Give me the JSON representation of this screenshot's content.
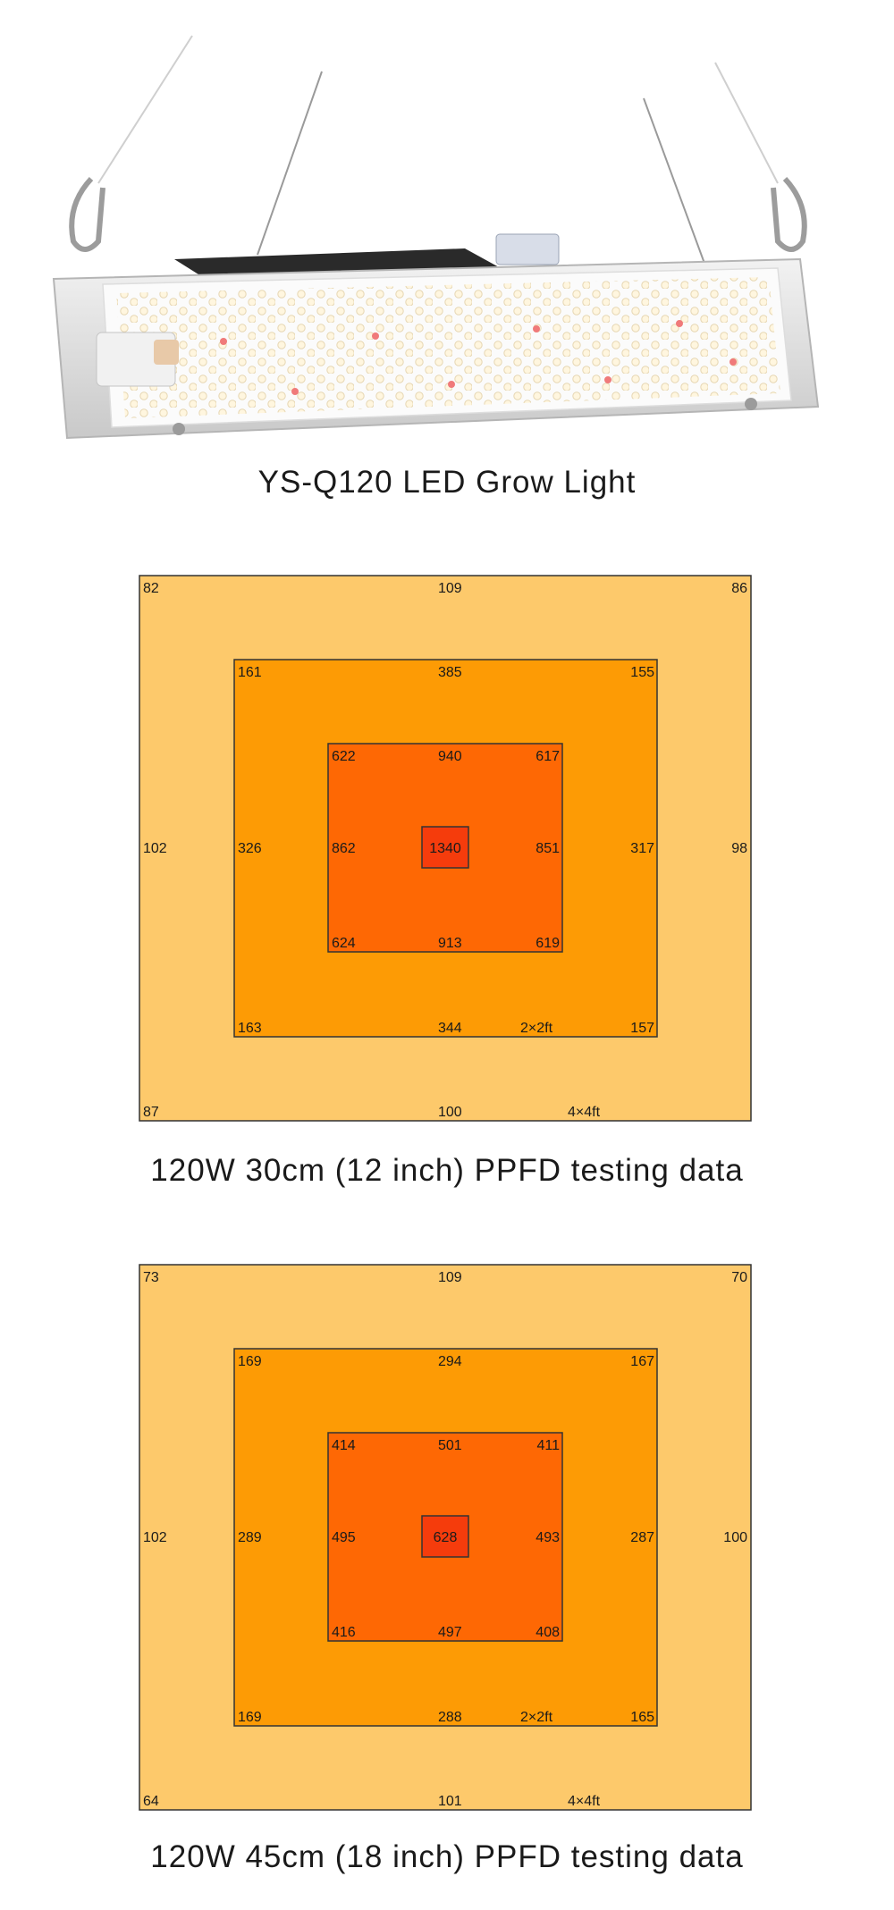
{
  "product": {
    "caption": "YS-Q120 LED Grow Light"
  },
  "diagrams": [
    {
      "caption": "120W 30cm (12 inch) PPFD testing data",
      "outer": {
        "tl": "82",
        "tc": "109",
        "tr": "86",
        "ml": "102",
        "mr": "98",
        "bl": "87",
        "bc": "100",
        "size": "4×4ft"
      },
      "middle": {
        "tl": "161",
        "tc": "385",
        "tr": "155",
        "ml": "326",
        "mr": "317",
        "bl": "163",
        "bc": "344",
        "br": "157",
        "size": "2×2ft"
      },
      "inner": {
        "tl": "622",
        "tc": "940",
        "tr": "617",
        "ml": "862",
        "mr": "851",
        "bl": "624",
        "bc": "913",
        "br": "619"
      },
      "center": "1340"
    },
    {
      "caption": "120W 45cm (18 inch) PPFD testing data",
      "outer": {
        "tl": "73",
        "tc": "109",
        "tr": "70",
        "ml": "102",
        "mr": "100",
        "bl": "64",
        "bc": "101",
        "size": "4×4ft"
      },
      "middle": {
        "tl": "169",
        "tc": "294",
        "tr": "167",
        "ml": "289",
        "mr": "287",
        "bl": "169",
        "bc": "288",
        "br": "165",
        "size": "2×2ft"
      },
      "inner": {
        "tl": "414",
        "tc": "501",
        "tr": "411",
        "ml": "495",
        "mr": "493",
        "bl": "416",
        "bc": "497",
        "br": "408"
      },
      "center": "628"
    }
  ],
  "colors": {
    "outer": "#fdc96b",
    "middle": "#fd9b05",
    "inner": "#fe6804",
    "center": "#f53c0c",
    "border": "#333333"
  }
}
